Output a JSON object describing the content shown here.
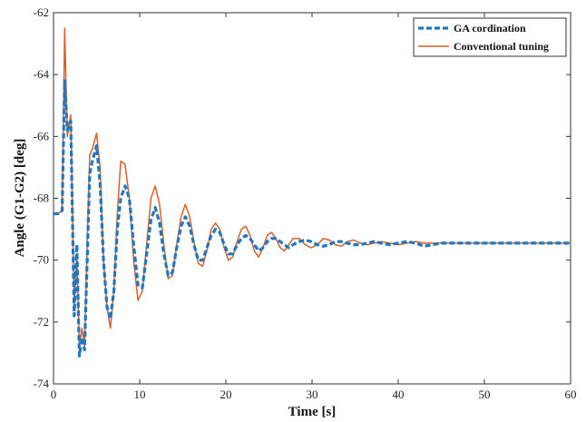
{
  "chart_data": {
    "type": "line",
    "title": "",
    "xlabel": "Time [s]",
    "ylabel": "Angle (G1-G2) [deg]",
    "xlim": [
      0,
      60
    ],
    "ylim": [
      -74,
      -62
    ],
    "xticks": [
      0,
      10,
      20,
      30,
      40,
      50,
      60
    ],
    "yticks": [
      -74,
      -72,
      -70,
      -68,
      -66,
      -64,
      -62
    ],
    "grid": false,
    "legend_position": "top-right",
    "series": [
      {
        "name": "GA cordination",
        "color": "#1f77c4",
        "style": "dashed",
        "x": [
          0,
          0.5,
          1.0,
          1.3,
          1.6,
          2.0,
          2.4,
          2.7,
          3.0,
          3.3,
          3.6,
          3.9,
          4.2,
          4.5,
          5.0,
          5.4,
          5.8,
          6.2,
          6.6,
          7.0,
          7.4,
          7.8,
          8.3,
          8.8,
          9.3,
          9.8,
          10.3,
          10.8,
          11.3,
          11.8,
          12.3,
          12.8,
          13.3,
          13.8,
          14.3,
          14.8,
          15.3,
          15.8,
          16.3,
          16.8,
          17.3,
          17.8,
          18.3,
          18.8,
          19.3,
          19.8,
          20.3,
          20.8,
          21.3,
          21.8,
          22.3,
          22.8,
          23.3,
          23.8,
          24.3,
          24.8,
          25.3,
          25.8,
          26.3,
          26.8,
          27.3,
          27.8,
          28.5,
          29.2,
          29.9,
          30.6,
          31.3,
          32.0,
          32.7,
          33.4,
          34.1,
          34.8,
          35.6,
          36.4,
          37.2,
          38.0,
          39.0,
          40.0,
          41.0,
          42.0,
          43.0,
          45.0,
          48.0,
          52.0,
          56.0,
          60.0
        ],
        "values": [
          -68.5,
          -68.5,
          -68.4,
          -64.2,
          -65.8,
          -65.5,
          -71.8,
          -69.5,
          -73.1,
          -72.5,
          -72.9,
          -70.0,
          -67.2,
          -66.8,
          -66.3,
          -67.5,
          -70.0,
          -71.5,
          -71.9,
          -71.0,
          -69.0,
          -68.0,
          -67.6,
          -68.0,
          -69.5,
          -70.8,
          -70.9,
          -69.8,
          -68.7,
          -68.3,
          -68.8,
          -69.8,
          -70.5,
          -70.4,
          -69.6,
          -68.9,
          -68.6,
          -68.9,
          -69.5,
          -70.0,
          -70.0,
          -69.6,
          -69.2,
          -69.0,
          -69.1,
          -69.5,
          -69.8,
          -69.8,
          -69.5,
          -69.3,
          -69.2,
          -69.3,
          -69.5,
          -69.7,
          -69.6,
          -69.4,
          -69.3,
          -69.3,
          -69.4,
          -69.5,
          -69.6,
          -69.5,
          -69.4,
          -69.35,
          -69.4,
          -69.5,
          -69.55,
          -69.5,
          -69.4,
          -69.4,
          -69.45,
          -69.5,
          -69.5,
          -69.45,
          -69.4,
          -69.45,
          -69.5,
          -69.45,
          -69.4,
          -69.45,
          -69.55,
          -69.45,
          -69.45,
          -69.45,
          -69.45,
          -69.45
        ]
      },
      {
        "name": "Conventional tuning",
        "color": "#d95f2a",
        "style": "solid",
        "x": [
          0,
          0.5,
          1.0,
          1.3,
          1.6,
          2.0,
          2.4,
          2.7,
          3.0,
          3.3,
          3.6,
          3.9,
          4.2,
          4.5,
          5.0,
          5.4,
          5.8,
          6.2,
          6.6,
          7.0,
          7.4,
          7.8,
          8.3,
          8.8,
          9.3,
          9.8,
          10.3,
          10.8,
          11.3,
          11.8,
          12.3,
          12.8,
          13.3,
          13.8,
          14.3,
          14.8,
          15.3,
          15.8,
          16.3,
          16.8,
          17.3,
          17.8,
          18.3,
          18.8,
          19.3,
          19.8,
          20.3,
          20.8,
          21.3,
          21.8,
          22.3,
          22.8,
          23.3,
          23.8,
          24.3,
          24.8,
          25.3,
          25.8,
          26.3,
          26.8,
          27.3,
          27.8,
          28.5,
          29.2,
          29.9,
          30.6,
          31.3,
          32.0,
          32.7,
          33.4,
          34.1,
          34.8,
          35.6,
          36.4,
          37.2,
          38.0,
          39.0,
          40.0,
          41.0,
          42.0,
          43.0,
          45.0,
          48.0,
          52.0,
          56.0,
          60.0
        ],
        "values": [
          -68.5,
          -68.5,
          -68.4,
          -62.5,
          -66.0,
          -65.3,
          -71.5,
          -69.8,
          -72.8,
          -72.2,
          -72.8,
          -69.5,
          -66.6,
          -66.4,
          -65.9,
          -67.0,
          -70.0,
          -71.5,
          -72.2,
          -71.0,
          -68.5,
          -66.8,
          -66.9,
          -68.0,
          -70.0,
          -71.3,
          -71.0,
          -69.5,
          -68.0,
          -67.6,
          -68.2,
          -69.5,
          -70.6,
          -70.5,
          -69.5,
          -68.6,
          -68.2,
          -68.6,
          -69.4,
          -70.1,
          -70.2,
          -69.7,
          -69.0,
          -68.8,
          -69.0,
          -69.6,
          -70.0,
          -69.9,
          -69.4,
          -69.0,
          -68.9,
          -69.2,
          -69.7,
          -69.9,
          -69.6,
          -69.2,
          -69.1,
          -69.3,
          -69.6,
          -69.7,
          -69.5,
          -69.3,
          -69.3,
          -69.5,
          -69.6,
          -69.5,
          -69.3,
          -69.35,
          -69.5,
          -69.55,
          -69.4,
          -69.35,
          -69.45,
          -69.5,
          -69.45,
          -69.4,
          -69.45,
          -69.5,
          -69.45,
          -69.4,
          -69.45,
          -69.45,
          -69.45,
          -69.45,
          -69.45,
          -69.45
        ]
      }
    ]
  }
}
